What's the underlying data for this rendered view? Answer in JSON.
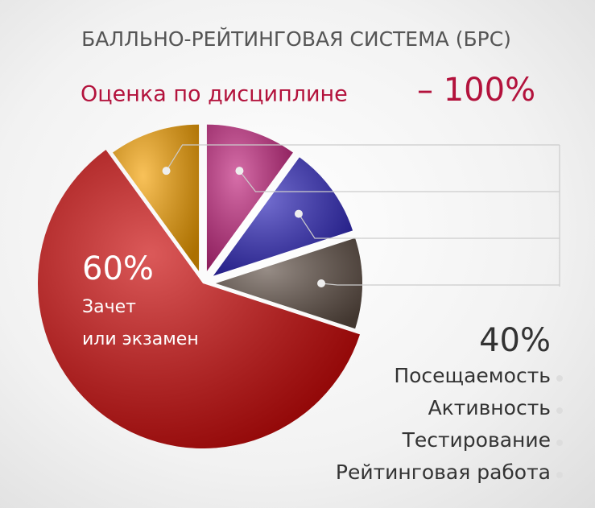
{
  "chart_data": {
    "type": "pie",
    "title": "БАЛЛЬНО-РЕЙТИНГОВАЯ СИСТЕМА (БРС)",
    "subtitle": "Оценка по дисциплине",
    "total_label": "– 100%",
    "categories": [
      "Зачет\nили экзамен",
      "Посещаемость",
      "Активность",
      "Тестирование",
      "Рейтинговая работа"
    ],
    "values": [
      60,
      10,
      10,
      10,
      10
    ],
    "value_labels": [
      "60%",
      null,
      null,
      null,
      null
    ],
    "colors": [
      "#c80000",
      "#f5a000",
      "#c0207a",
      "#2a22b8",
      "#5e4e44"
    ],
    "group_total": {
      "value": 40,
      "label": "40%"
    }
  }
}
